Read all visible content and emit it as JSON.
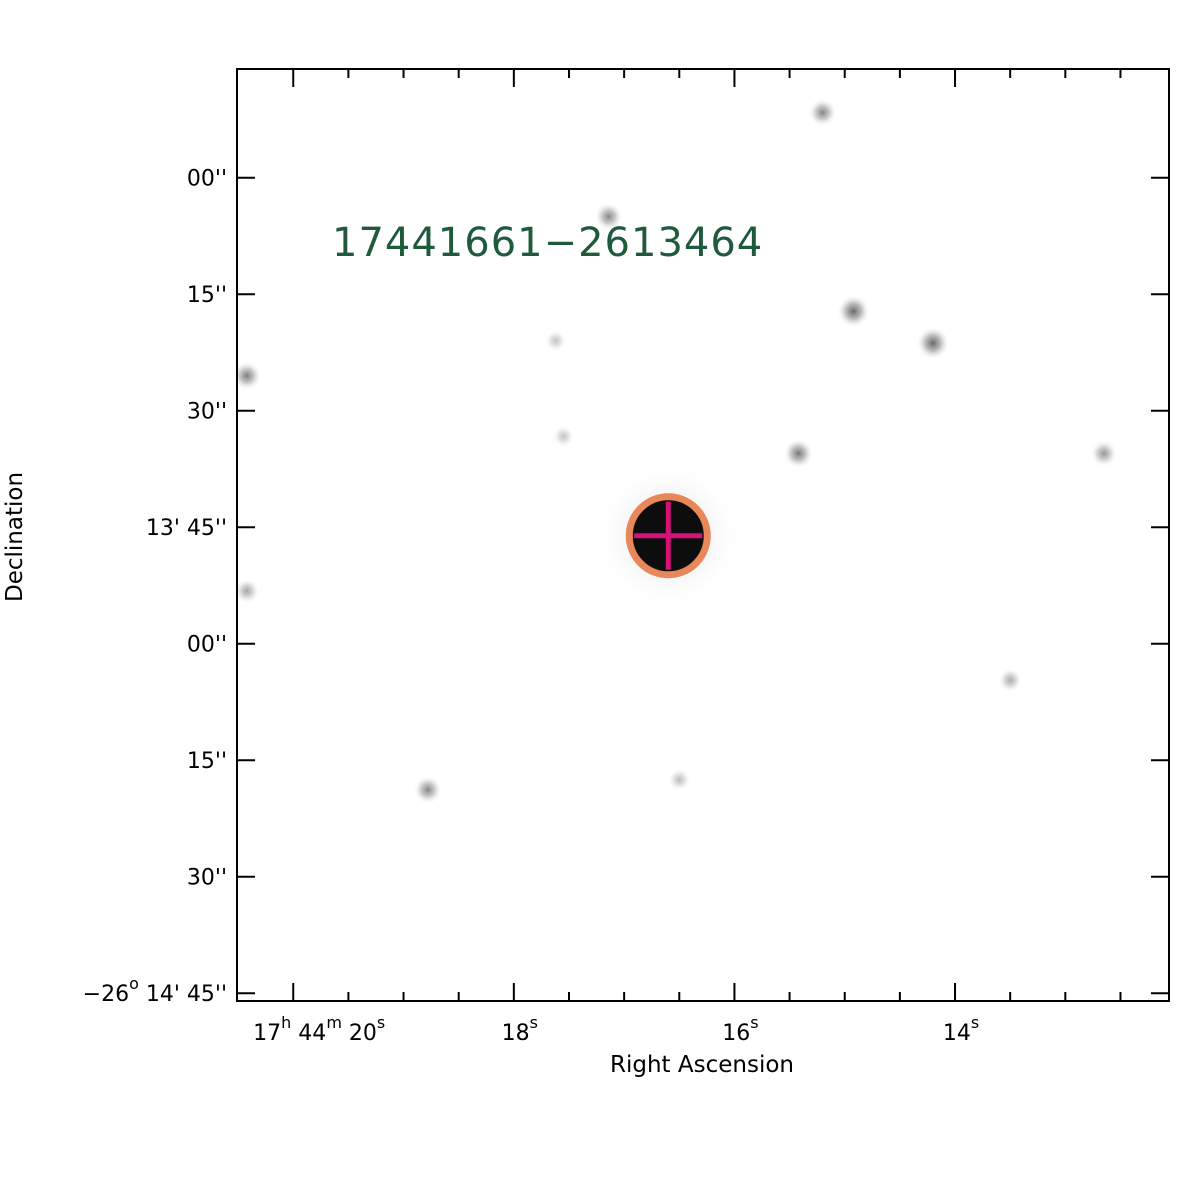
{
  "chart_data": {
    "type": "image",
    "title": "",
    "source_label": "17441661−2613464",
    "xlabel": "Right Ascension",
    "ylabel": "Declination",
    "x_ticks": [
      {
        "h": "17",
        "hsup": "h",
        "m": "44",
        "msup": "m",
        "s": "20",
        "ssup": "s",
        "value_s": 20
      },
      {
        "s": "18",
        "ssup": "s",
        "value_s": 18
      },
      {
        "s": "16",
        "ssup": "s",
        "value_s": 16
      },
      {
        "s": "14",
        "ssup": "s",
        "value_s": 14
      }
    ],
    "y_ticks": [
      {
        "label": "00''",
        "value_arcsec": 780
      },
      {
        "label": "15''",
        "value_arcsec": 795
      },
      {
        "label": "30''",
        "value_arcsec": 810
      },
      {
        "label": "13' 45''",
        "value_arcsec": 825
      },
      {
        "label": "00''",
        "value_arcsec": 840
      },
      {
        "label": "15''",
        "value_arcsec": 855
      },
      {
        "label": "30''",
        "value_arcsec": 870
      },
      {
        "label": "−26",
        "labelsup": "o",
        "labelrest": " 14' 45''",
        "value_arcsec": 885
      }
    ],
    "ra_range_s": [
      20.51,
      12.06
    ],
    "dec_range_arcsec": [
      766,
      886
    ],
    "target": {
      "ra_s": 16.6,
      "dec_arcsec": 826.1,
      "marker": "circle-with-cross"
    },
    "stars": [
      {
        "ra_s": 15.2,
        "dec_arcsec": 771.6,
        "strength": 0.55
      },
      {
        "ra_s": 17.14,
        "dec_arcsec": 785.0,
        "strength": 0.55
      },
      {
        "ra_s": 14.92,
        "dec_arcsec": 797.2,
        "strength": 0.85
      },
      {
        "ra_s": 14.2,
        "dec_arcsec": 801.3,
        "strength": 0.85
      },
      {
        "ra_s": 20.42,
        "dec_arcsec": 805.5,
        "strength": 0.6
      },
      {
        "ra_s": 15.42,
        "dec_arcsec": 815.5,
        "strength": 0.65
      },
      {
        "ra_s": 12.65,
        "dec_arcsec": 815.5,
        "strength": 0.45
      },
      {
        "ra_s": 20.42,
        "dec_arcsec": 833.2,
        "strength": 0.35
      },
      {
        "ra_s": 13.5,
        "dec_arcsec": 844.7,
        "strength": 0.3
      },
      {
        "ra_s": 18.78,
        "dec_arcsec": 858.8,
        "strength": 0.55
      },
      {
        "ra_s": 16.5,
        "dec_arcsec": 857.5,
        "strength": 0.2
      },
      {
        "ra_s": 17.55,
        "dec_arcsec": 813.3,
        "strength": 0.15
      },
      {
        "ra_s": 17.62,
        "dec_arcsec": 801.0,
        "strength": 0.15
      }
    ],
    "colors": {
      "source_label": "#1f5a3c",
      "circle": "#e8875a",
      "cross": "#d6127a",
      "frame": "#000000",
      "background": "#ffffff"
    }
  }
}
